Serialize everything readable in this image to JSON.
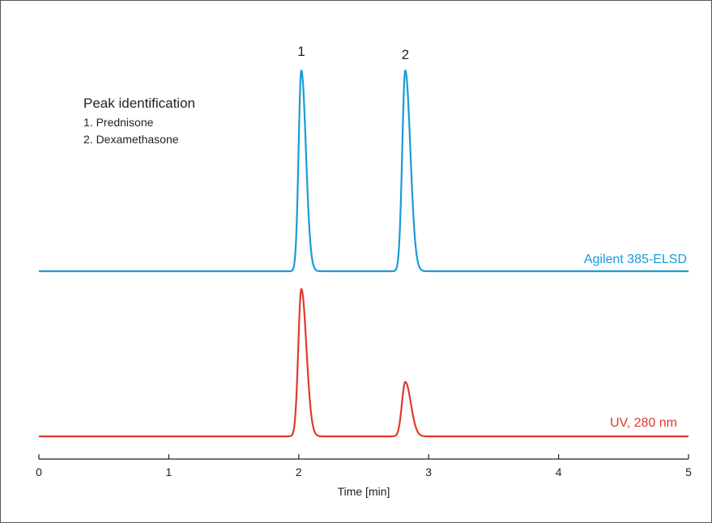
{
  "chart_data": {
    "type": "line",
    "title": "",
    "xlabel": "Time [min]",
    "ylabel": "",
    "xlim": [
      0,
      5
    ],
    "x_ticks": [
      "0",
      "1",
      "2",
      "3",
      "4",
      "5"
    ],
    "grid": false,
    "peak_labels": [
      {
        "label": "1",
        "x": 2.02
      },
      {
        "label": "2",
        "x": 2.82
      }
    ],
    "legend": {
      "title": "Peak identification",
      "items": [
        "1.  Prednisone",
        "2.  Dexamethasone"
      ],
      "placement": "top-left"
    },
    "series": [
      {
        "name": "Agilent 385-ELSD",
        "color": "#1a9bd7",
        "peaks": [
          {
            "x": 2.02,
            "height": 1.0,
            "width": 0.045
          },
          {
            "x": 2.82,
            "height": 1.0,
            "width": 0.05
          }
        ]
      },
      {
        "name": "UV, 280 nm",
        "color": "#e03a2e",
        "peaks": [
          {
            "x": 2.02,
            "height": 1.0,
            "width": 0.05
          },
          {
            "x": 2.82,
            "height": 0.37,
            "width": 0.055
          }
        ]
      }
    ]
  }
}
